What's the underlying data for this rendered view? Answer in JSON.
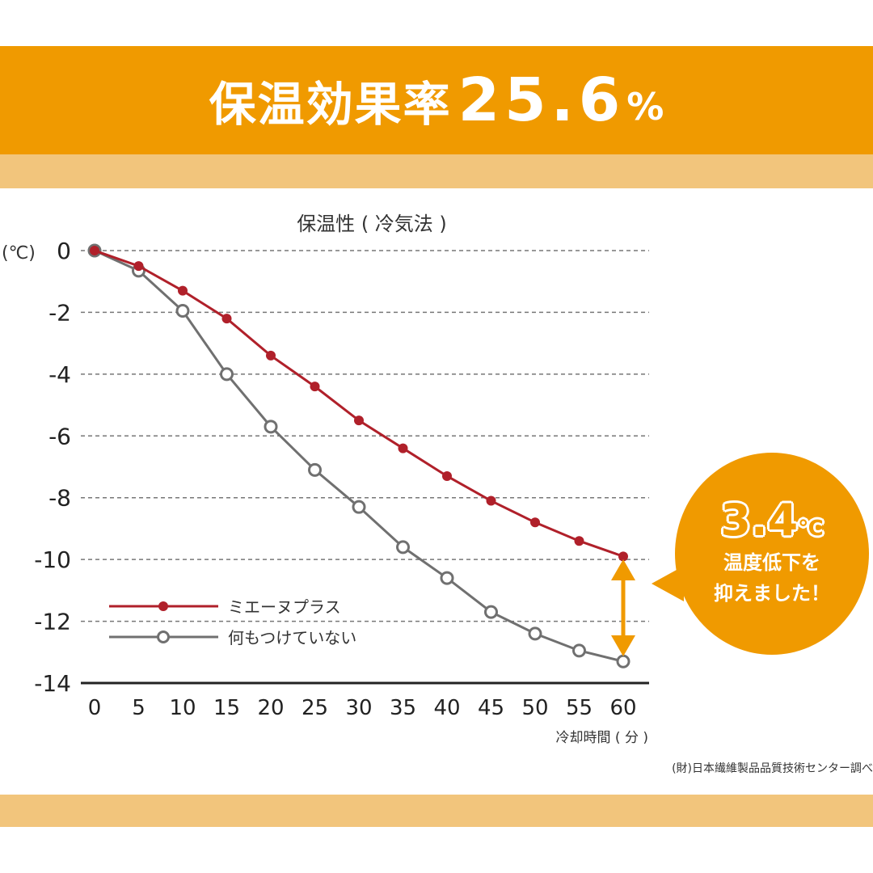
{
  "banner": {
    "label": "保温効果率",
    "value": "25.6",
    "unit": "%"
  },
  "callout": {
    "value": "3.4",
    "unit": "℃",
    "line1": "温度低下を",
    "line2": "抑えました！"
  },
  "source": "(財)日本繊維製品品質技術センター調べ",
  "colors": {
    "banner": "#f09a00",
    "band": "#f2c57c",
    "series1": "#b0202a",
    "series2": "#707070",
    "arrow": "#f09a00"
  },
  "chart_data": {
    "type": "line",
    "title": "保温性 ( 冷気法 )",
    "xlabel": "冷却時間 ( 分 )",
    "ylabel": "(℃)",
    "x": [
      0,
      5,
      10,
      15,
      20,
      25,
      30,
      35,
      40,
      45,
      50,
      55,
      60
    ],
    "xlim": [
      0,
      60
    ],
    "ylim": [
      -14,
      0
    ],
    "yticks": [
      0,
      -2,
      -4,
      -6,
      -8,
      -10,
      -12,
      -14
    ],
    "grid": "horizontal dashed",
    "legend": "bottom-left",
    "series": [
      {
        "name": "ミエーヌプラス",
        "marker": "filled",
        "values": [
          0,
          -0.5,
          -1.3,
          -2.2,
          -3.4,
          -4.4,
          -5.5,
          -6.4,
          -7.3,
          -8.1,
          -8.8,
          -9.4,
          -9.9
        ]
      },
      {
        "name": "何もつけていない",
        "marker": "hollow",
        "values": [
          0,
          -0.65,
          -1.95,
          -4.0,
          -5.7,
          -7.1,
          -8.3,
          -9.6,
          -10.6,
          -11.7,
          -12.4,
          -12.95,
          -13.3
        ]
      }
    ]
  }
}
